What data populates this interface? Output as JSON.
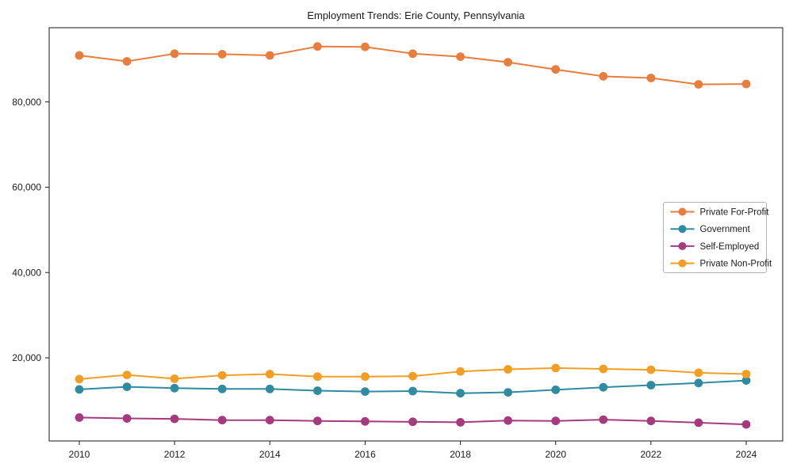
{
  "chart_data": {
    "type": "line",
    "title": "Employment Trends: Erie County, Pennsylvania",
    "x": [
      2010,
      2011,
      2012,
      2013,
      2014,
      2015,
      2016,
      2017,
      2018,
      2019,
      2020,
      2021,
      2022,
      2023,
      2024
    ],
    "series": [
      {
        "name": "Private For-Profit",
        "color": "#e87d3e",
        "values": [
          90900,
          89500,
          91300,
          91200,
          90900,
          93000,
          92900,
          91300,
          90600,
          89300,
          87600,
          86000,
          85600,
          84100,
          84200
        ]
      },
      {
        "name": "Government",
        "color": "#2e8ba0",
        "values": [
          12600,
          13200,
          12900,
          12700,
          12700,
          12300,
          12100,
          12200,
          11700,
          11900,
          12500,
          13100,
          13600,
          14100,
          14700
        ]
      },
      {
        "name": "Self-Employed",
        "color": "#a63a7e",
        "values": [
          6000,
          5800,
          5700,
          5400,
          5400,
          5200,
          5100,
          5000,
          4900,
          5300,
          5200,
          5500,
          5200,
          4800,
          4400
        ]
      },
      {
        "name": "Private Non-Profit",
        "color": "#f29e23",
        "values": [
          15000,
          16000,
          15100,
          15900,
          16200,
          15600,
          15600,
          15700,
          16800,
          17300,
          17600,
          17400,
          17200,
          16500,
          16200
        ]
      }
    ],
    "xticks": {
      "values": [
        2010,
        2012,
        2014,
        2016,
        2018,
        2020,
        2022,
        2024
      ],
      "labels": [
        "2010",
        "2012",
        "2014",
        "2016",
        "2018",
        "2020",
        "2022",
        "2024"
      ]
    },
    "yticks": {
      "values": [
        20000,
        40000,
        60000,
        80000
      ],
      "labels": [
        "20,000",
        "40,000",
        "60,000",
        "80,000"
      ]
    },
    "xlim": [
      2009.37,
      2024.77
    ],
    "ylim": [
      300,
      97300
    ],
    "grid": false,
    "marker": "circle",
    "legend": {
      "position": "center-right",
      "entries": [
        "Private For-Profit",
        "Government",
        "Self-Employed",
        "Private Non-Profit"
      ]
    },
    "background": "#ffffff",
    "text_color": "#1a1a1a"
  }
}
